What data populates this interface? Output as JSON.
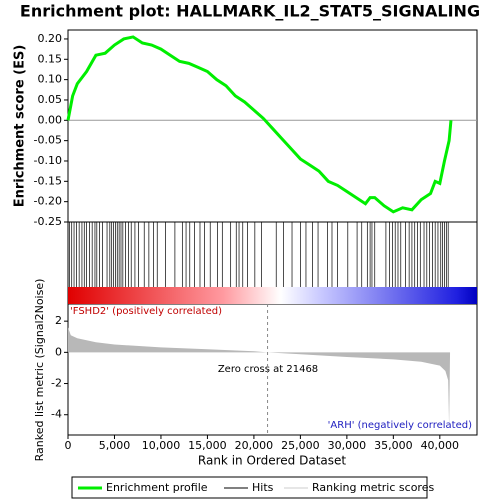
{
  "chart_data": [
    {
      "type": "line",
      "title": "Enrichment plot: HALLMARK_IL2_STAT5_SIGNALING",
      "ylabel": "Enrichment score (ES)",
      "x": [
        0,
        500,
        1000,
        2000,
        3000,
        4000,
        5000,
        6000,
        7000,
        8000,
        9000,
        10000,
        11000,
        12000,
        13000,
        14000,
        15000,
        16000,
        17000,
        18000,
        19000,
        20000,
        21000,
        22000,
        23000,
        24000,
        25000,
        26000,
        27000,
        28000,
        29000,
        30000,
        31000,
        32000,
        32500,
        33000,
        34000,
        35000,
        36000,
        37000,
        38000,
        39000,
        39500,
        40000,
        40500,
        41000,
        41200
      ],
      "series": [
        {
          "name": "Enrichment profile",
          "color": "#00ee00",
          "values": [
            0,
            0.06,
            0.09,
            0.12,
            0.16,
            0.165,
            0.185,
            0.2,
            0.205,
            0.19,
            0.185,
            0.175,
            0.16,
            0.145,
            0.14,
            0.13,
            0.12,
            0.1,
            0.085,
            0.06,
            0.045,
            0.025,
            0.005,
            -0.02,
            -0.045,
            -0.07,
            -0.095,
            -0.11,
            -0.125,
            -0.15,
            -0.16,
            -0.175,
            -0.19,
            -0.205,
            -0.19,
            -0.19,
            -0.21,
            -0.225,
            -0.215,
            -0.22,
            -0.195,
            -0.18,
            -0.15,
            -0.155,
            -0.1,
            -0.05,
            0
          ]
        }
      ],
      "xlim": [
        0,
        44000
      ],
      "ylim": [
        -0.25,
        0.222
      ],
      "yticks": [
        {
          "value": 0.2,
          "label": "0.20"
        },
        {
          "value": 0.15,
          "label": "0.15"
        },
        {
          "value": 0.1,
          "label": "0.10"
        },
        {
          "value": 0.05,
          "label": "0.05"
        },
        {
          "value": 0,
          "label": "0.00"
        },
        {
          "value": -0.05,
          "label": "-0.05"
        },
        {
          "value": -0.1,
          "label": "-0.10"
        },
        {
          "value": -0.15,
          "label": "-0.15"
        },
        {
          "value": -0.2,
          "label": "-0.20"
        },
        {
          "value": -0.25,
          "label": "-0.25"
        }
      ]
    },
    {
      "type": "rug",
      "name": "Hits",
      "color": "#000000",
      "xlim": [
        0,
        44000
      ],
      "x": [
        150,
        400,
        650,
        900,
        1200,
        1500,
        1750,
        2000,
        2300,
        2600,
        2900,
        3100,
        3400,
        3700,
        4200,
        4500,
        4700,
        4900,
        5100,
        5300,
        5500,
        5700,
        5900,
        6200,
        6500,
        6800,
        7200,
        7600,
        8200,
        8700,
        9200,
        9600,
        10500,
        11500,
        12300,
        12700,
        13100,
        13600,
        14200,
        14700,
        15300,
        16100,
        16600,
        17500,
        18100,
        18400,
        18800,
        19300,
        20100,
        20800,
        22400,
        23200,
        24100,
        25000,
        25600,
        26300,
        26900,
        27900,
        28400,
        29000,
        30100,
        31100,
        31600,
        32200,
        32500,
        32700,
        33000,
        34200,
        34600,
        34900,
        35200,
        35500,
        35800,
        36300,
        36700,
        37000,
        37300,
        37600,
        37900,
        38300,
        38600,
        38900,
        39200,
        39500,
        39800,
        40100,
        40300,
        40500,
        40700,
        40900
      ]
    },
    {
      "type": "area",
      "ylabel": "Ranked list metric (Signal2Noise)",
      "xlabel": "Rank in Ordered Dataset",
      "x": [
        0,
        300,
        1000,
        3000,
        5000,
        10000,
        15000,
        20000,
        21468,
        25000,
        30000,
        35000,
        38000,
        40000,
        40600,
        40900,
        41000,
        41100
      ],
      "series": [
        {
          "name": "Ranking metric scores",
          "color": "#b8b8b8",
          "values": [
            1.6,
            1.1,
            0.9,
            0.65,
            0.5,
            0.32,
            0.2,
            0.07,
            0,
            -0.12,
            -0.3,
            -0.45,
            -0.6,
            -0.85,
            -1.2,
            -1.8,
            -4.8,
            0
          ]
        }
      ],
      "xlim": [
        0,
        44000
      ],
      "ylim": [
        -5.3,
        3.1
      ],
      "yticks": [
        2,
        0,
        -2,
        -4
      ],
      "xticks": [
        0,
        {
          "value": 5000,
          "label": "5,000"
        },
        {
          "value": 10000,
          "label": "10,000"
        },
        {
          "value": 15000,
          "label": "15,000"
        },
        {
          "value": 20000,
          "label": "20,000"
        },
        {
          "value": 25000,
          "label": "25,000"
        },
        {
          "value": 30000,
          "label": "30,000"
        },
        {
          "value": 35000,
          "label": "35,000"
        },
        {
          "value": 40000,
          "label": "40,000"
        }
      ],
      "zero_cross": 21468,
      "annotations": [
        "'FSHD2' (positively correlated)",
        "Zero cross at 21468",
        "'ARH' (negatively correlated)"
      ]
    }
  ]
}
